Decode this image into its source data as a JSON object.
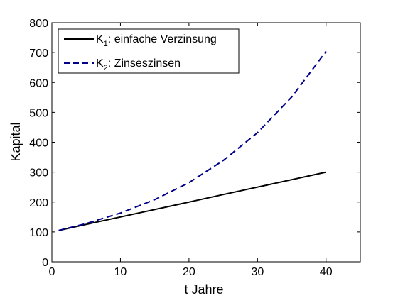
{
  "chart_data": {
    "type": "line",
    "xlabel": "t Jahre",
    "ylabel": "Kapital",
    "xlim": [
      0,
      45
    ],
    "ylim": [
      0,
      800
    ],
    "xticks": [
      0,
      10,
      20,
      30,
      40
    ],
    "yticks": [
      0,
      100,
      200,
      300,
      400,
      500,
      600,
      700,
      800
    ],
    "grid": false,
    "legend_position": "top-left",
    "series": [
      {
        "name": "K1: einfache Verzinsung",
        "legend_main": "K",
        "legend_sub": "1",
        "legend_rest": ": einfache Verzinsung",
        "color": "#000000",
        "style": "solid",
        "x": [
          1,
          5,
          10,
          15,
          20,
          25,
          30,
          35,
          40
        ],
        "y": [
          105,
          125,
          150,
          175,
          200,
          225,
          250,
          275,
          300
        ]
      },
      {
        "name": "K2: Zinseszinsen",
        "legend_main": "K",
        "legend_sub": "2",
        "legend_rest": ": Zinseszinsen",
        "color": "#00008B",
        "style": "dashed",
        "x": [
          1,
          5,
          10,
          15,
          20,
          25,
          30,
          35,
          40
        ],
        "y": [
          105,
          128,
          163,
          208,
          265,
          339,
          432,
          552,
          704
        ]
      }
    ]
  }
}
